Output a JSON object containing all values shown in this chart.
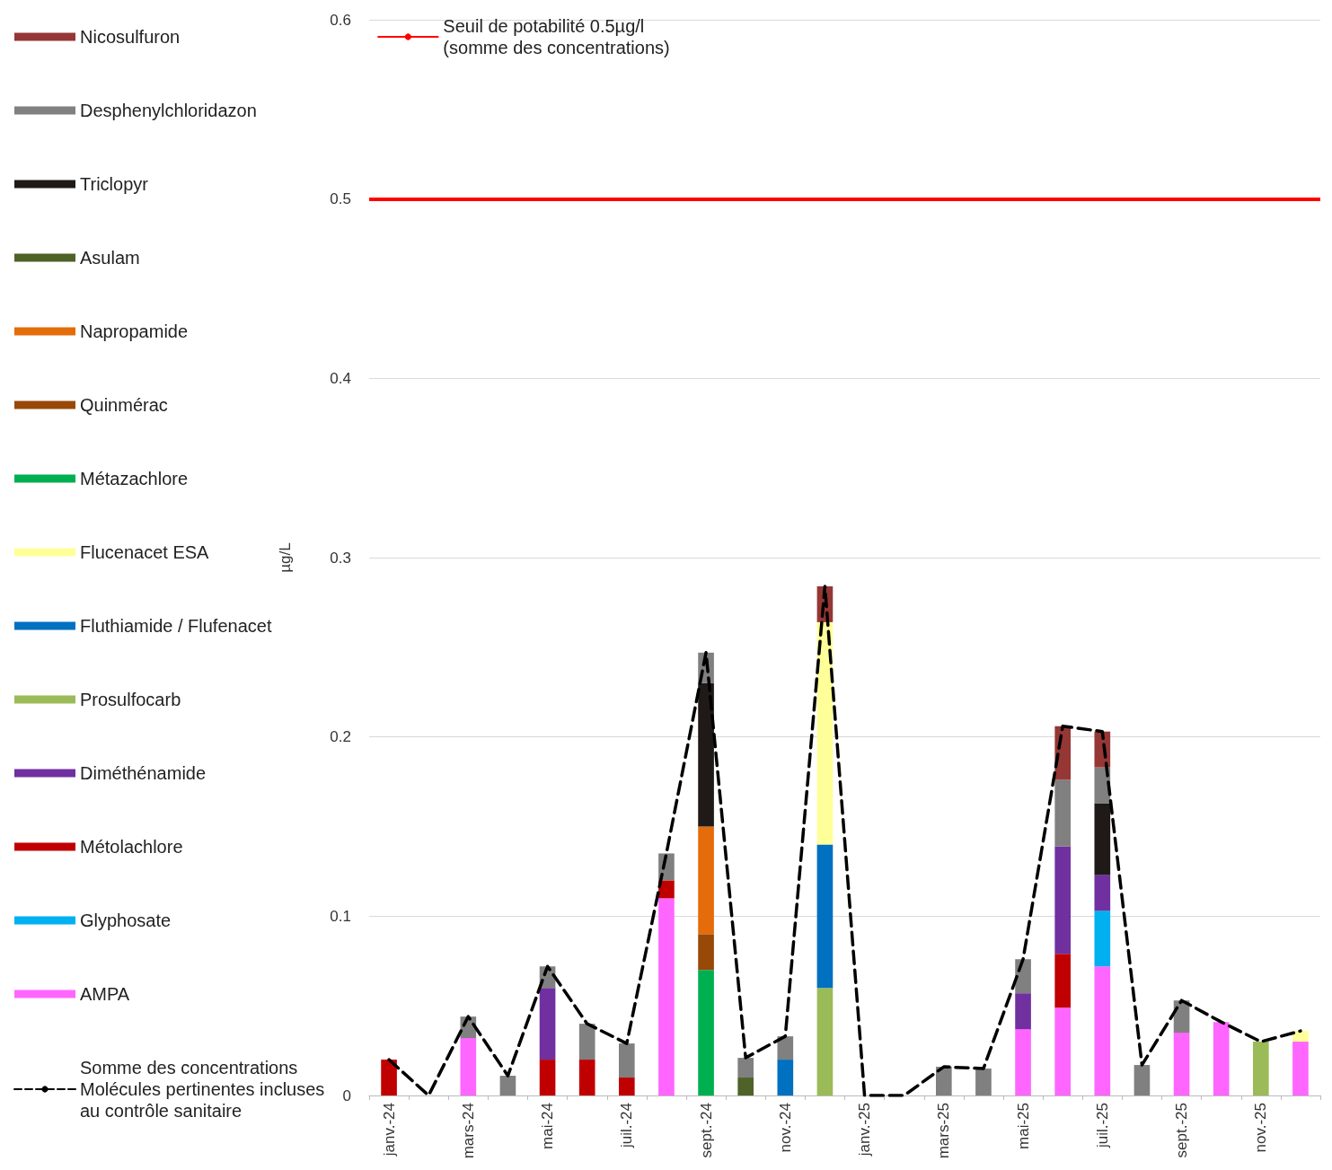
{
  "chart_data": {
    "type": "bar",
    "stacked": true,
    "ylabel": "µg/L",
    "categories": [
      "janv.-24",
      null,
      "mars-24",
      null,
      "mai-24",
      null,
      "juil.-24",
      null,
      "sept.-24",
      null,
      "nov.-24",
      null,
      "janv.-25",
      null,
      "mars-25",
      null,
      "mai-25",
      null,
      "juil.-25",
      null,
      "sept.-25",
      null,
      "nov.-25",
      null
    ],
    "ylim": [
      0,
      0.6
    ],
    "yticks": [
      0,
      0.1,
      0.2,
      0.3,
      0.4,
      0.5,
      0.6
    ],
    "grid": "y",
    "legend": "left",
    "series": [
      {
        "name": "AMPA",
        "color": "#ff66ff",
        "values": [
          null,
          null,
          0.032,
          null,
          null,
          null,
          null,
          0.11,
          null,
          null,
          null,
          null,
          null,
          null,
          null,
          null,
          0.037,
          0.049,
          0.072,
          null,
          0.035,
          0.041,
          null,
          0.03
        ]
      },
      {
        "name": "Glyphosate",
        "color": "#00b0f0",
        "values": [
          null,
          null,
          null,
          null,
          null,
          null,
          null,
          null,
          null,
          null,
          null,
          null,
          null,
          null,
          null,
          null,
          null,
          null,
          0.031,
          null,
          null,
          null,
          null,
          null
        ]
      },
      {
        "name": "Métolachlore",
        "color": "#c00000",
        "values": [
          0.02,
          null,
          null,
          null,
          0.02,
          0.02,
          0.01,
          0.01,
          null,
          null,
          null,
          null,
          null,
          null,
          null,
          null,
          null,
          0.03,
          null,
          null,
          null,
          null,
          null,
          null
        ]
      },
      {
        "name": "Diméthénamide",
        "color": "#7030a0",
        "values": [
          null,
          null,
          null,
          null,
          0.04,
          null,
          null,
          null,
          null,
          null,
          null,
          null,
          null,
          null,
          null,
          null,
          0.02,
          0.06,
          0.02,
          null,
          null,
          null,
          null,
          null
        ]
      },
      {
        "name": "Prosulfocarb",
        "color": "#9bbb59",
        "values": [
          null,
          null,
          null,
          null,
          null,
          null,
          null,
          null,
          null,
          null,
          null,
          0.06,
          null,
          null,
          null,
          null,
          null,
          null,
          null,
          null,
          null,
          null,
          0.03,
          null
        ]
      },
      {
        "name": "Fluthiamide / Flufenacet",
        "color": "#0070c0",
        "values": [
          null,
          null,
          null,
          null,
          null,
          null,
          null,
          null,
          null,
          null,
          0.02,
          0.08,
          null,
          null,
          null,
          null,
          null,
          null,
          null,
          null,
          null,
          null,
          null,
          null
        ]
      },
      {
        "name": "Flucenacet ESA",
        "color": "#ffff99",
        "values": [
          null,
          null,
          null,
          null,
          null,
          null,
          null,
          null,
          null,
          null,
          null,
          0.124,
          null,
          null,
          null,
          null,
          null,
          null,
          null,
          null,
          null,
          null,
          null,
          0.006
        ]
      },
      {
        "name": "Métazachlore",
        "color": "#00b050",
        "values": [
          null,
          null,
          null,
          null,
          null,
          null,
          null,
          null,
          0.07,
          null,
          null,
          null,
          null,
          null,
          null,
          null,
          null,
          null,
          null,
          null,
          null,
          null,
          null,
          null
        ]
      },
      {
        "name": "Quinmérac",
        "color": "#984807",
        "values": [
          null,
          null,
          null,
          null,
          null,
          null,
          null,
          null,
          0.02,
          null,
          null,
          null,
          null,
          null,
          null,
          null,
          null,
          null,
          null,
          null,
          null,
          null,
          null,
          null
        ]
      },
      {
        "name": "Napropamide",
        "color": "#e46c0a",
        "values": [
          null,
          null,
          null,
          null,
          null,
          null,
          null,
          null,
          0.06,
          null,
          null,
          null,
          null,
          null,
          null,
          null,
          null,
          null,
          null,
          null,
          null,
          null,
          null,
          null
        ]
      },
      {
        "name": "Asulam",
        "color": "#4f6228",
        "values": [
          null,
          null,
          null,
          null,
          null,
          null,
          null,
          null,
          null,
          0.01,
          null,
          null,
          null,
          null,
          null,
          null,
          null,
          null,
          null,
          null,
          null,
          null,
          null,
          null
        ]
      },
      {
        "name": "Triclopyr",
        "color": "#1f1a17",
        "values": [
          null,
          null,
          null,
          null,
          null,
          null,
          null,
          null,
          0.08,
          null,
          null,
          null,
          null,
          null,
          null,
          null,
          null,
          null,
          0.04,
          null,
          null,
          null,
          null,
          null
        ]
      },
      {
        "name": "Desphenylchloridazon",
        "color": "#808080",
        "values": [
          null,
          null,
          0.012,
          0.011,
          0.012,
          0.02,
          0.019,
          0.015,
          0.017,
          0.011,
          0.013,
          null,
          null,
          null,
          0.016,
          0.015,
          0.019,
          0.037,
          0.02,
          0.017,
          0.018,
          null,
          null,
          null
        ]
      },
      {
        "name": "Nicosulfuron",
        "color": "#953735",
        "values": [
          null,
          null,
          null,
          null,
          null,
          null,
          null,
          null,
          null,
          null,
          null,
          0.02,
          null,
          null,
          null,
          null,
          null,
          0.03,
          0.02,
          null,
          null,
          null,
          null,
          null
        ]
      },
      {
        "name": "Somme des concentrations\nMolécules pertinentes incluses\nau contrôle sanitaire",
        "type": "line",
        "color": "#000000",
        "line_style": "dashed",
        "marker": "none",
        "values": [
          0.02,
          0,
          0.044,
          0.011,
          0.072,
          0.04,
          0.029,
          0.135,
          0.247,
          0.021,
          0.033,
          0.284,
          0,
          0,
          0.016,
          0.015,
          0.076,
          0.206,
          0.203,
          0.017,
          0.053,
          0.041,
          0.03,
          0.036
        ]
      }
    ],
    "ref_lines": [
      {
        "axis": "y",
        "value": 0.5,
        "label": "Seuil de potabilité 0.5µg/l\n(somme des concentrations)",
        "color": "#ff0000",
        "line_style": "solid"
      }
    ]
  }
}
